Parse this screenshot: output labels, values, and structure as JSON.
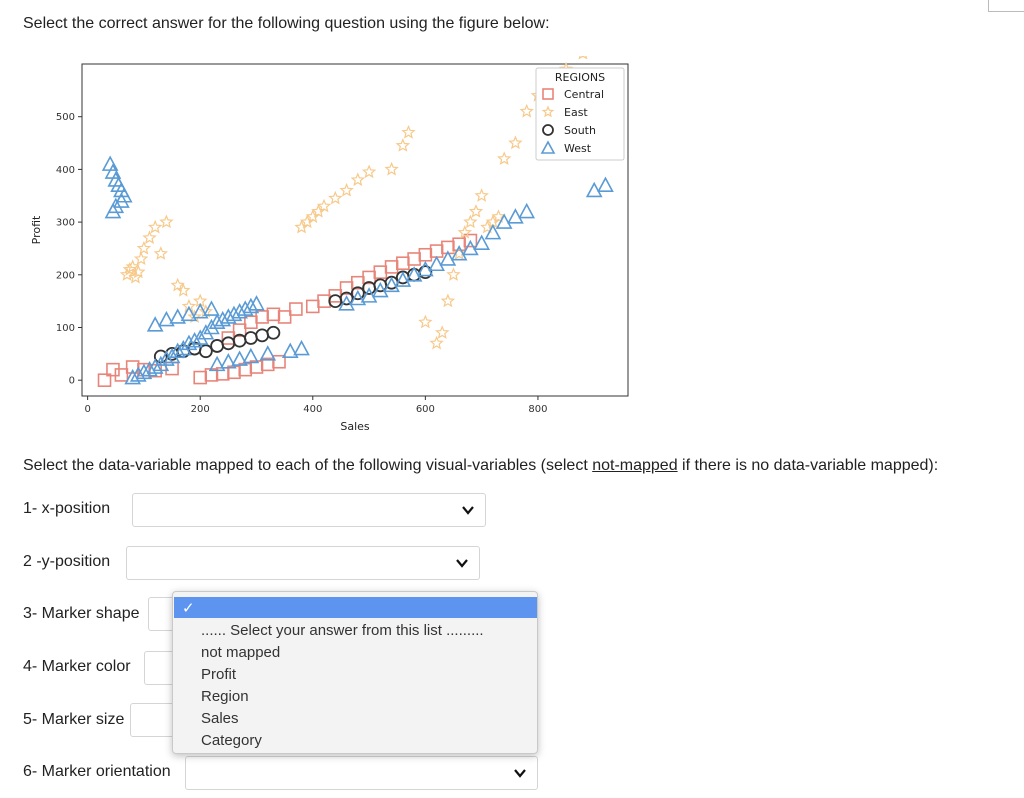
{
  "question_text": "Select the correct answer for the following question using the  figure below:",
  "instruction": {
    "prefix": "Select the data-variable mapped to each of the following visual-variables (select ",
    "link": "not-mapped",
    "suffix": " if there is no data-variable mapped):"
  },
  "questions": [
    {
      "label": "1- x-position",
      "value": ""
    },
    {
      "label": "2 -y-position",
      "value": ""
    },
    {
      "label": "3- Marker shape",
      "value": ""
    },
    {
      "label": "4- Marker color",
      "value": ""
    },
    {
      "label": "5- Marker size",
      "value": ""
    },
    {
      "label": "6- Marker orientation",
      "value": ""
    }
  ],
  "dropdown": {
    "check": "✓",
    "options": [
      "...... Select your answer from this list .........",
      "not mapped",
      "Profit",
      "Region",
      "Sales",
      "Category"
    ]
  },
  "chart_data": {
    "type": "scatter",
    "xlabel": "Sales",
    "ylabel": "Profit",
    "xlim": [
      -10,
      960
    ],
    "ylim": [
      -30,
      600
    ],
    "xticks": [
      "0",
      "200",
      "400",
      "600",
      "800"
    ],
    "yticks": [
      "0",
      "100",
      "200",
      "300",
      "400",
      "500"
    ],
    "legend_title": "REGIONS",
    "legend_position": "top-right",
    "colors": {
      "Central": "#e8857a",
      "East": "#f7c98a",
      "South": "#333333",
      "West": "#5b9bd5"
    },
    "series": [
      {
        "name": "Central",
        "marker": "square",
        "points": [
          [
            30,
            0
          ],
          [
            45,
            20
          ],
          [
            60,
            10
          ],
          [
            80,
            25
          ],
          [
            100,
            20
          ],
          [
            120,
            18
          ],
          [
            150,
            22
          ],
          [
            200,
            5
          ],
          [
            220,
            10
          ],
          [
            240,
            12
          ],
          [
            260,
            15
          ],
          [
            280,
            20
          ],
          [
            300,
            25
          ],
          [
            320,
            30
          ],
          [
            340,
            35
          ],
          [
            250,
            80
          ],
          [
            270,
            95
          ],
          [
            290,
            110
          ],
          [
            310,
            120
          ],
          [
            330,
            125
          ],
          [
            350,
            120
          ],
          [
            370,
            135
          ],
          [
            400,
            140
          ],
          [
            420,
            150
          ],
          [
            440,
            160
          ],
          [
            460,
            175
          ],
          [
            480,
            185
          ],
          [
            500,
            195
          ],
          [
            520,
            205
          ],
          [
            540,
            215
          ],
          [
            560,
            222
          ],
          [
            580,
            230
          ],
          [
            600,
            238
          ],
          [
            620,
            245
          ],
          [
            640,
            252
          ],
          [
            660,
            258
          ],
          [
            680,
            265
          ]
        ]
      },
      {
        "name": "East",
        "marker": "star",
        "points": [
          [
            70,
            200
          ],
          [
            75,
            210
          ],
          [
            80,
            215
          ],
          [
            85,
            195
          ],
          [
            90,
            205
          ],
          [
            95,
            230
          ],
          [
            100,
            250
          ],
          [
            110,
            270
          ],
          [
            120,
            290
          ],
          [
            130,
            240
          ],
          [
            140,
            300
          ],
          [
            160,
            180
          ],
          [
            170,
            170
          ],
          [
            180,
            140
          ],
          [
            190,
            120
          ],
          [
            200,
            150
          ],
          [
            210,
            130
          ],
          [
            380,
            290
          ],
          [
            390,
            300
          ],
          [
            400,
            310
          ],
          [
            410,
            320
          ],
          [
            420,
            330
          ],
          [
            440,
            345
          ],
          [
            460,
            360
          ],
          [
            480,
            380
          ],
          [
            500,
            395
          ],
          [
            540,
            400
          ],
          [
            560,
            445
          ],
          [
            570,
            470
          ],
          [
            600,
            110
          ],
          [
            620,
            70
          ],
          [
            630,
            90
          ],
          [
            640,
            150
          ],
          [
            650,
            200
          ],
          [
            660,
            240
          ],
          [
            670,
            280
          ],
          [
            680,
            300
          ],
          [
            690,
            320
          ],
          [
            700,
            350
          ],
          [
            710,
            290
          ],
          [
            720,
            300
          ],
          [
            730,
            310
          ],
          [
            740,
            420
          ],
          [
            760,
            450
          ],
          [
            780,
            510
          ],
          [
            800,
            540
          ],
          [
            820,
            560
          ],
          [
            850,
            590
          ],
          [
            880,
            620
          ]
        ]
      },
      {
        "name": "South",
        "marker": "circle",
        "points": [
          [
            130,
            45
          ],
          [
            150,
            50
          ],
          [
            170,
            55
          ],
          [
            190,
            60
          ],
          [
            210,
            55
          ],
          [
            230,
            65
          ],
          [
            250,
            70
          ],
          [
            270,
            75
          ],
          [
            290,
            80
          ],
          [
            310,
            85
          ],
          [
            330,
            90
          ],
          [
            440,
            150
          ],
          [
            460,
            155
          ],
          [
            480,
            165
          ],
          [
            500,
            175
          ],
          [
            520,
            180
          ],
          [
            540,
            185
          ],
          [
            560,
            195
          ],
          [
            580,
            200
          ],
          [
            600,
            205
          ]
        ]
      },
      {
        "name": "West",
        "marker": "triangle",
        "points": [
          [
            40,
            410
          ],
          [
            45,
            395
          ],
          [
            50,
            380
          ],
          [
            55,
            370
          ],
          [
            60,
            360
          ],
          [
            65,
            350
          ],
          [
            60,
            340
          ],
          [
            50,
            330
          ],
          [
            45,
            320
          ],
          [
            80,
            5
          ],
          [
            90,
            10
          ],
          [
            100,
            15
          ],
          [
            110,
            20
          ],
          [
            120,
            25
          ],
          [
            130,
            30
          ],
          [
            140,
            40
          ],
          [
            150,
            45
          ],
          [
            160,
            55
          ],
          [
            170,
            60
          ],
          [
            180,
            70
          ],
          [
            190,
            75
          ],
          [
            200,
            80
          ],
          [
            210,
            90
          ],
          [
            220,
            100
          ],
          [
            230,
            110
          ],
          [
            240,
            115
          ],
          [
            250,
            120
          ],
          [
            260,
            125
          ],
          [
            270,
            130
          ],
          [
            280,
            135
          ],
          [
            290,
            140
          ],
          [
            300,
            145
          ],
          [
            230,
            30
          ],
          [
            250,
            35
          ],
          [
            270,
            40
          ],
          [
            290,
            45
          ],
          [
            320,
            50
          ],
          [
            360,
            55
          ],
          [
            380,
            60
          ],
          [
            120,
            105
          ],
          [
            140,
            115
          ],
          [
            160,
            120
          ],
          [
            180,
            125
          ],
          [
            200,
            130
          ],
          [
            220,
            135
          ],
          [
            460,
            145
          ],
          [
            480,
            155
          ],
          [
            500,
            160
          ],
          [
            520,
            170
          ],
          [
            540,
            180
          ],
          [
            560,
            190
          ],
          [
            580,
            200
          ],
          [
            600,
            210
          ],
          [
            620,
            220
          ],
          [
            640,
            230
          ],
          [
            660,
            240
          ],
          [
            680,
            250
          ],
          [
            700,
            260
          ],
          [
            720,
            280
          ],
          [
            740,
            300
          ],
          [
            760,
            310
          ],
          [
            780,
            320
          ],
          [
            900,
            360
          ],
          [
            920,
            370
          ]
        ]
      }
    ]
  }
}
